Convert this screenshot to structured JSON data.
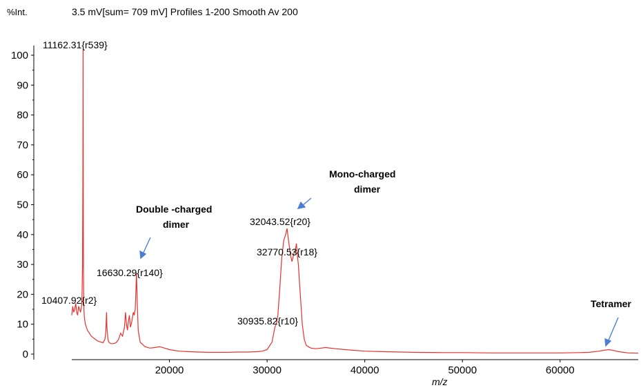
{
  "chart_data": {
    "type": "line",
    "ylabel": "%Int.",
    "header": "3.5 mV[sum= 709 mV]  Profiles 1-200 Smooth Av 200",
    "xlabel": "m/z",
    "xlim": [
      10000,
      68000
    ],
    "ylim": [
      0,
      100
    ],
    "xticks": [
      20000,
      30000,
      40000,
      50000,
      60000
    ],
    "xtick_labels": [
      "20000",
      "30000",
      "40000",
      "50000",
      "60000"
    ],
    "yticks": [
      0,
      10,
      20,
      30,
      40,
      50,
      60,
      70,
      80,
      90,
      100
    ],
    "ytick_labels": [
      "0",
      "10",
      "20",
      "30",
      "40",
      "50",
      "60",
      "70",
      "80",
      "90",
      "100"
    ],
    "line_color": "#e8302b",
    "arrow_color": "#4a7fd4",
    "peak_labels": [
      {
        "x": 11162.31,
        "y": 102,
        "text": "11162.31{r539}"
      },
      {
        "x": 10407.92,
        "y": 18,
        "text": "10407.92{r2}"
      },
      {
        "x": 16630.29,
        "y": 27,
        "text": "16630.29{r140}"
      },
      {
        "x": 32043.52,
        "y": 42,
        "text": "32043.52{r20}"
      },
      {
        "x": 32770.53,
        "y": 34,
        "text": "32770.53{r18}"
      },
      {
        "x": 30935.82,
        "y": 10,
        "text": "30935.82{r10}"
      }
    ],
    "annotations": [
      {
        "lines": [
          "Double -charged",
          "dimer"
        ]
      },
      {
        "lines": [
          "Mono-charged",
          "dimer"
        ]
      },
      {
        "lines": [
          "Tetramer"
        ]
      }
    ],
    "series": [
      {
        "x": [
          10000,
          10100,
          10200,
          10300,
          10407,
          10500,
          10600,
          10700,
          10800,
          10900,
          11000,
          11050,
          11100,
          11140,
          11162,
          11185,
          11220,
          11260,
          11300,
          11400,
          11500,
          11600,
          11700,
          11800,
          11900,
          12000,
          12200,
          12400,
          12600,
          12800,
          13000,
          13200,
          13400,
          13500,
          13560,
          13600,
          13700,
          13800,
          14000,
          14200,
          14400,
          14600,
          14800,
          15000,
          15200,
          15400,
          15500,
          15600,
          15700,
          15800,
          15900,
          16000,
          16100,
          16200,
          16300,
          16400,
          16500,
          16630,
          16700,
          16800,
          17000,
          17500,
          18000,
          18500,
          19000,
          19500,
          20000,
          21000,
          22000,
          23000,
          24000,
          25000,
          26000,
          27000,
          28000,
          29000,
          29500,
          30000,
          30500,
          30800,
          30935,
          31100,
          31300,
          31500,
          31700,
          31900,
          32043,
          32200,
          32400,
          32550,
          32770,
          32900,
          33000,
          33100,
          33200,
          33400,
          33600,
          33800,
          34000,
          34200,
          34500,
          35000,
          35500,
          36000,
          37000,
          38000,
          40000,
          42000,
          45000,
          48000,
          50000,
          53000,
          56000,
          58000,
          60000,
          62000,
          63000,
          64000,
          64500,
          65000,
          65500,
          66000,
          67000,
          68000
        ],
        "y": [
          13,
          16,
          14,
          15,
          17,
          14,
          13,
          16,
          15,
          14,
          16,
          20,
          29,
          58,
          102,
          40,
          18,
          14,
          12,
          10,
          9,
          8,
          7.5,
          7,
          6.5,
          6,
          5.5,
          5,
          4.5,
          4.2,
          4,
          3.8,
          5,
          8,
          14,
          9,
          5,
          4,
          3.5,
          3.5,
          3.6,
          4,
          5,
          7,
          6,
          9,
          14,
          10,
          8,
          11,
          13,
          9,
          10,
          12,
          14,
          13,
          15,
          27,
          18,
          8,
          4,
          2.5,
          2,
          2.2,
          2.5,
          2,
          1.5,
          1,
          0.8,
          0.7,
          0.6,
          0.6,
          0.6,
          0.7,
          0.7,
          0.8,
          1,
          1.5,
          4,
          9,
          10,
          13,
          22,
          32,
          38,
          40,
          42,
          38,
          33,
          31,
          34,
          35,
          37,
          33,
          30,
          20,
          10,
          5,
          3,
          2.5,
          2,
          1.8,
          2,
          2.2,
          1.8,
          1.5,
          1,
          0.8,
          0.6,
          0.5,
          0.5,
          0.4,
          0.4,
          0.4,
          0.4,
          0.5,
          0.6,
          1,
          1.3,
          1.5,
          1.2,
          0.8,
          0.4,
          0.3
        ]
      }
    ]
  }
}
